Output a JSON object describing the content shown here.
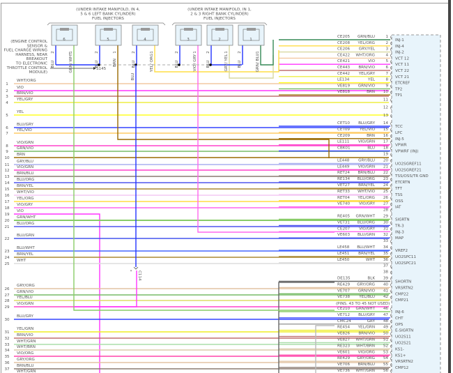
{
  "left_bank_note": [
    "(UNDER INTAKE MANIFOLD, IN 4,",
    "5 & 6 LEFT BANK CYLINDER)",
    "FUEL INJECTORS"
  ],
  "right_bank_note": [
    "(UNDER INTAKE MANIFOLD, IN 1,",
    "2 & 3 RIGHT BANK CYLINDER)",
    "FUEL INJECTORS"
  ],
  "harness_note": [
    "(ENGINE CONTROL",
    "SENSOR &",
    "FUEL CHARGE WIRING",
    "HARNESS, NEAR",
    "BREAKOUT",
    "TO ELECTRONIC",
    "THROTTLE CONTROL",
    "MODULE)"
  ],
  "splice_label": "S145",
  "connector_label": "C114",
  "connector_pin_marker": "*",
  "injectors": [
    {
      "number": "6",
      "pin2_color": "BLU",
      "pin1_color": "GRN/ WHT"
    },
    {
      "number": "5",
      "pin2_color": "BLU",
      "pin1_color": "BRN"
    },
    {
      "number": "4",
      "pin2_color": "BLU",
      "pin1_color": "YEL/ ORG"
    },
    {
      "number": "3",
      "pin2_color": "BLU",
      "pin1_color": "VIO/ GRY"
    },
    {
      "number": "2",
      "pin2_color": "BLU",
      "pin1_color": "GRY/ YEL"
    },
    {
      "number": "1",
      "pin2_color": "BLU",
      "pin1_color": "GRN/ BLU"
    }
  ],
  "injector_pin_numbers": [
    "2",
    "1"
  ],
  "blu_below_splice": "BLU",
  "left_wires": [
    {
      "pin": "1",
      "color": "WHT/ORG"
    },
    {
      "pin": "2",
      "color": "VIO"
    },
    {
      "pin": "3",
      "color": "BRN/VIO"
    },
    {
      "pin": "4",
      "color": "YEL/GRY"
    },
    {
      "pin": "5",
      "color": "YEL"
    },
    {
      "pin": "6",
      "color": "BLU/GRY"
    },
    {
      "pin": "7",
      "color": "YEL/VIO"
    },
    {
      "pin": "8",
      "color": "VIO/GRN"
    },
    {
      "pin": "9",
      "color": "GRN/VIO"
    },
    {
      "pin": "10",
      "color": "BRN"
    },
    {
      "pin": "11",
      "color": "GRY/BLU"
    },
    {
      "pin": "12",
      "color": "VIO/GRN"
    },
    {
      "pin": "13",
      "color": "BRN/BLU"
    },
    {
      "pin": "14",
      "color": "BLU/ORG"
    },
    {
      "pin": "15",
      "color": "BRN/YEL"
    },
    {
      "pin": "16",
      "color": "WHT/VIO"
    },
    {
      "pin": "17",
      "color": "YEL/ORG"
    },
    {
      "pin": "18",
      "color": "VIO/GRY"
    },
    {
      "pin": "19",
      "color": "VIO"
    },
    {
      "pin": "20",
      "color": "GRN/WHT"
    },
    {
      "pin": "21",
      "color": "BLU/ORG"
    },
    {
      "pin": "22",
      "color": "BLU/GRN"
    },
    {
      "pin": "23",
      "color": "BLU/WHT"
    },
    {
      "pin": "24",
      "color": "BRN/YEL"
    },
    {
      "pin": "25",
      "color": "WHT"
    },
    {
      "pin": "26",
      "color": "GRY/ORG"
    },
    {
      "pin": "27",
      "color": "GRN/VIO"
    },
    {
      "pin": "28",
      "color": "YEL/BLU"
    },
    {
      "pin": "29",
      "color": "VIO/GRN"
    },
    {
      "pin": "30",
      "color": "BLU/GRY"
    },
    {
      "pin": "31",
      "color": "YEL/GRN"
    },
    {
      "pin": "32",
      "color": "BRN/VIO"
    },
    {
      "pin": "33",
      "color": "WHT/GRN"
    },
    {
      "pin": "34",
      "color": "WHT/BRN"
    },
    {
      "pin": "35",
      "color": "VIO/ORG"
    },
    {
      "pin": "36",
      "color": "GRY/ORG"
    },
    {
      "pin": "37",
      "color": "BRN/BLU"
    },
    {
      "pin": "",
      "color": "WHT/GRN"
    }
  ],
  "right_pins": [
    {
      "pin": "1",
      "circuit": "CE205",
      "color": "GRN/BLU",
      "function": "INJ-1"
    },
    {
      "pin": "2",
      "circuit": "CE208",
      "color": "YEL/ORG",
      "function": "INJ-4"
    },
    {
      "pin": "3",
      "circuit": "CE206",
      "color": "GRY/YEL",
      "function": "INJ-2"
    },
    {
      "pin": "4",
      "circuit": "CE422",
      "color": "WHT/ORG",
      "function": "VCT 12"
    },
    {
      "pin": "5",
      "circuit": "CE421",
      "color": "VIO",
      "function": "VCT 11"
    },
    {
      "pin": "6",
      "circuit": "CE443",
      "color": "BRN/VIO",
      "function": "VCT 22"
    },
    {
      "pin": "7",
      "circuit": "CE442",
      "color": "YEL/GRY",
      "function": "VCT 21"
    },
    {
      "pin": "8",
      "circuit": "LE134",
      "color": "YEL",
      "function": "ETCREF"
    },
    {
      "pin": "9",
      "circuit": "VE819",
      "color": "GRN/VIO",
      "function": "TP2"
    },
    {
      "pin": "10",
      "circuit": "VE818",
      "color": "BRN",
      "function": "TP1"
    },
    {
      "pin": "11",
      "circuit": "",
      "color": "",
      "function": ""
    },
    {
      "pin": "12",
      "circuit": "",
      "color": "",
      "function": ""
    },
    {
      "pin": "13",
      "circuit": "",
      "color": "",
      "function": ""
    },
    {
      "pin": "14",
      "circuit": "CET10",
      "color": "BLU/GRY",
      "function": "TCC"
    },
    {
      "pin": "15",
      "circuit": "CET09",
      "color": "YEL/VIO",
      "function": "LPC"
    },
    {
      "pin": "16",
      "circuit": "CE209",
      "color": "BRN",
      "function": "INJ-5"
    },
    {
      "pin": "17",
      "circuit": "LE111",
      "color": "VIO/GRN",
      "function": "VPWR"
    },
    {
      "pin": "18",
      "circuit": "CBK01",
      "color": "BLU",
      "function": "VPWRF (INJ)"
    },
    {
      "pin": "19",
      "circuit": "",
      "color": "",
      "function": ""
    },
    {
      "pin": "20",
      "circuit": "LE448",
      "color": "GRY/BLU",
      "function": "UO2SGREF11"
    },
    {
      "pin": "21",
      "circuit": "LE449",
      "color": "VIO/GRN",
      "function": "UO2SGREF21"
    },
    {
      "pin": "22",
      "circuit": "RET24",
      "color": "BRN/BLU",
      "function": "TSS/OSS/TR GND"
    },
    {
      "pin": "23",
      "circuit": "RE134",
      "color": "BLU/ORG",
      "function": "ETCRTN"
    },
    {
      "pin": "24",
      "circuit": "VET27",
      "color": "BRN/YEL",
      "function": "TFT"
    },
    {
      "pin": "25",
      "circuit": "RET33",
      "color": "WHT/VIO",
      "function": "TSS"
    },
    {
      "pin": "26",
      "circuit": "RET04",
      "color": "YEL/ORG",
      "function": "OSS"
    },
    {
      "pin": "27",
      "circuit": "VE740",
      "color": "VIO/GRY",
      "function": "IAT"
    },
    {
      "pin": "28",
      "circuit": "",
      "color": "",
      "function": ""
    },
    {
      "pin": "29",
      "circuit": "RE405",
      "color": "GRN/WHT",
      "function": "SIGRTN"
    },
    {
      "pin": "30",
      "circuit": "VET31",
      "color": "BLU/ORG",
      "function": "TR-3"
    },
    {
      "pin": "31",
      "circuit": "CE207",
      "color": "VIO/GRY",
      "function": "INJ-3"
    },
    {
      "pin": "32",
      "circuit": "VE603",
      "color": "BLU/GRN",
      "function": "MAP"
    },
    {
      "pin": "33",
      "circuit": "",
      "color": "",
      "function": ""
    },
    {
      "pin": "34",
      "circuit": "LE458",
      "color": "BLU/WHT",
      "function": "VREF2"
    },
    {
      "pin": "35",
      "circuit": "LE451",
      "color": "BRN/YEL",
      "function": "UO2SPC11"
    },
    {
      "pin": "36",
      "circuit": "LE450",
      "color": "WHT",
      "function": "UO2SPC21"
    },
    {
      "pin": "37",
      "circuit": "",
      "color": "",
      "function": ""
    },
    {
      "pin": "38",
      "circuit": "",
      "color": "",
      "function": ""
    },
    {
      "pin": "39",
      "circuit": "DE135",
      "color": "BLK",
      "function": "SHORTN"
    },
    {
      "pin": "40",
      "circuit": "RE429",
      "color": "GRY/ORG",
      "function": "VRSRTN2"
    },
    {
      "pin": "41",
      "circuit": "VE707",
      "color": "GRN/VIO",
      "function": "CMP22"
    },
    {
      "pin": "42",
      "circuit": "VE738",
      "color": "YEL/BLU",
      "function": "CMP21"
    },
    {
      "pin": "46",
      "circuit": "CE210",
      "color": "GRN/WHT",
      "function": "INJ-6"
    },
    {
      "pin": "47",
      "circuit": "VE712",
      "color": "BLU/GRY",
      "function": "CHT"
    },
    {
      "pin": "48",
      "circuit": "CMC24",
      "color": "GRY",
      "function": "OPS"
    },
    {
      "pin": "49",
      "circuit": "RE454",
      "color": "YEL/GRN",
      "function": "E-SIGRTN"
    },
    {
      "pin": "50",
      "circuit": "VE826",
      "color": "BRN/VIO",
      "function": "UO2S11"
    },
    {
      "pin": "51",
      "circuit": "VE827",
      "color": "WHT/GRN",
      "function": "UO2S21"
    },
    {
      "pin": "52",
      "circuit": "RE323",
      "color": "WHT/BRN",
      "function": "KS1-"
    },
    {
      "pin": "53",
      "circuit": "VE601",
      "color": "VIO/ORG",
      "function": "KS1+"
    },
    {
      "pin": "54",
      "circuit": "RE429",
      "color": "GRY/ORG",
      "function": "VRSRTN2"
    },
    {
      "pin": "55",
      "circuit": "VE706",
      "color": "BRN/BLU",
      "function": "CMP12"
    },
    {
      "pin": "56",
      "circuit": "VE736",
      "color": "WHT/GRN",
      "function": ""
    }
  ],
  "unused_pins_note": "(PINS. 43 TO 45 NOT USED)",
  "wire_colors": {
    "WHT/ORG": "#f2c9a2",
    "VIO": "#ff33ff",
    "BRN/VIO": "#c07070",
    "YEL/GRY": "#eeee44",
    "YEL": "#ffff22",
    "BLU/GRY": "#3344ff",
    "YEL/VIO": "#ffcc66",
    "VIO/GRN": "#ff44cc",
    "GRN/VIO": "#77bb66",
    "BRN": "#9a6a00",
    "GRY/BLU": "#aab0f0",
    "BRN/BLU": "#8a7a70",
    "BLU/ORG": "#4f55ee",
    "BRN/YEL": "#aa8833",
    "WHT/VIO": "#f4c8f4",
    "YEL/ORG": "#ffdd44",
    "VIO/GRY": "#ff66ee",
    "GRN/WHT": "#88cc66",
    "BLU/GRN": "#4455ee",
    "BLU/WHT": "#4466ff",
    "WHT": "#dddddd",
    "GRY/ORG": "#e2c4a4",
    "YEL/BLU": "#dddd66",
    "YEL/GRN": "#eeee22",
    "WHT/GRN": "#aaddaa",
    "WHT/BRN": "#dccbaa",
    "VIO/ORG": "#ff44aa",
    "GRN/BLU": "#338855",
    "GRY/YEL": "#d8d8a0",
    "GRY": "#999999",
    "BLK": "#666666",
    "BLU": "#2233ff"
  },
  "connector_fill": "#e8f4fb"
}
